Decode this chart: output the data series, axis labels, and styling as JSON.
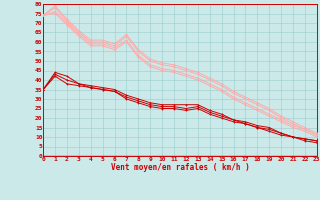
{
  "xlabel": "Vent moyen/en rafales ( km/h )",
  "xlim": [
    0,
    23
  ],
  "ylim": [
    0,
    80
  ],
  "yticks": [
    0,
    5,
    10,
    15,
    20,
    25,
    30,
    35,
    40,
    45,
    50,
    55,
    60,
    65,
    70,
    75,
    80
  ],
  "xticks": [
    0,
    1,
    2,
    3,
    4,
    5,
    6,
    7,
    8,
    9,
    10,
    11,
    12,
    13,
    14,
    15,
    16,
    17,
    18,
    19,
    20,
    21,
    22,
    23
  ],
  "background_color": "#cce9e9",
  "grid_color": "#99cccc",
  "line_color_dark": "#cc0000",
  "line_color_light": "#ffaaaa",
  "series_dark": [
    [
      0,
      35
    ],
    [
      1,
      44
    ],
    [
      2,
      42
    ],
    [
      3,
      38
    ],
    [
      4,
      37
    ],
    [
      5,
      36
    ],
    [
      6,
      35
    ],
    [
      7,
      32
    ],
    [
      8,
      30
    ],
    [
      9,
      28
    ],
    [
      10,
      27
    ],
    [
      11,
      27
    ],
    [
      12,
      27
    ],
    [
      13,
      27
    ],
    [
      14,
      24
    ],
    [
      15,
      22
    ],
    [
      16,
      19
    ],
    [
      17,
      18
    ],
    [
      18,
      16
    ],
    [
      19,
      15
    ],
    [
      20,
      12
    ],
    [
      21,
      10
    ],
    [
      22,
      9
    ],
    [
      23,
      8
    ]
  ],
  "series_dark2": [
    [
      0,
      35
    ],
    [
      1,
      42
    ],
    [
      2,
      38
    ],
    [
      3,
      37
    ],
    [
      4,
      36
    ],
    [
      5,
      35
    ],
    [
      6,
      34
    ],
    [
      7,
      30
    ],
    [
      8,
      28
    ],
    [
      9,
      26
    ],
    [
      10,
      25
    ],
    [
      11,
      25
    ],
    [
      12,
      24
    ],
    [
      13,
      25
    ],
    [
      14,
      22
    ],
    [
      15,
      20
    ],
    [
      16,
      18
    ],
    [
      17,
      17
    ],
    [
      18,
      15
    ],
    [
      19,
      13
    ],
    [
      20,
      11
    ],
    [
      21,
      10
    ],
    [
      22,
      8
    ],
    [
      23,
      7
    ]
  ],
  "series_dark3": [
    [
      0,
      35
    ],
    [
      1,
      43
    ],
    [
      2,
      40
    ],
    [
      3,
      38
    ],
    [
      4,
      36
    ],
    [
      5,
      35
    ],
    [
      6,
      34
    ],
    [
      7,
      31
    ],
    [
      8,
      29
    ],
    [
      9,
      27
    ],
    [
      10,
      26
    ],
    [
      11,
      26
    ],
    [
      12,
      25
    ],
    [
      13,
      26
    ],
    [
      14,
      23
    ],
    [
      15,
      21
    ],
    [
      16,
      19
    ],
    [
      17,
      17
    ],
    [
      18,
      15
    ],
    [
      19,
      14
    ],
    [
      20,
      12
    ],
    [
      21,
      10
    ],
    [
      22,
      9
    ],
    [
      23,
      8
    ]
  ],
  "series_light1": [
    [
      0,
      74
    ],
    [
      1,
      78
    ],
    [
      2,
      71
    ],
    [
      3,
      65
    ],
    [
      4,
      60
    ],
    [
      5,
      60
    ],
    [
      6,
      58
    ],
    [
      7,
      63
    ],
    [
      8,
      55
    ],
    [
      9,
      50
    ],
    [
      10,
      48
    ],
    [
      11,
      47
    ],
    [
      12,
      45
    ],
    [
      13,
      43
    ],
    [
      14,
      40
    ],
    [
      15,
      37
    ],
    [
      16,
      33
    ],
    [
      17,
      30
    ],
    [
      18,
      27
    ],
    [
      19,
      24
    ],
    [
      20,
      20
    ],
    [
      21,
      17
    ],
    [
      22,
      14
    ],
    [
      23,
      11
    ]
  ],
  "series_light2": [
    [
      0,
      74
    ],
    [
      1,
      75
    ],
    [
      2,
      69
    ],
    [
      3,
      63
    ],
    [
      4,
      58
    ],
    [
      5,
      58
    ],
    [
      6,
      56
    ],
    [
      7,
      60
    ],
    [
      8,
      52
    ],
    [
      9,
      47
    ],
    [
      10,
      45
    ],
    [
      11,
      44
    ],
    [
      12,
      42
    ],
    [
      13,
      40
    ],
    [
      14,
      37
    ],
    [
      15,
      34
    ],
    [
      16,
      30
    ],
    [
      17,
      27
    ],
    [
      18,
      24
    ],
    [
      19,
      21
    ],
    [
      20,
      18
    ],
    [
      21,
      15
    ],
    [
      22,
      13
    ],
    [
      23,
      10
    ]
  ],
  "series_light3": [
    [
      0,
      74
    ],
    [
      1,
      76
    ],
    [
      2,
      70
    ],
    [
      3,
      64
    ],
    [
      4,
      59
    ],
    [
      5,
      59
    ],
    [
      6,
      57
    ],
    [
      7,
      61
    ],
    [
      8,
      53
    ],
    [
      9,
      48
    ],
    [
      10,
      46
    ],
    [
      11,
      45
    ],
    [
      12,
      43
    ],
    [
      13,
      41
    ],
    [
      14,
      38
    ],
    [
      15,
      35
    ],
    [
      16,
      31
    ],
    [
      17,
      28
    ],
    [
      18,
      25
    ],
    [
      19,
      22
    ],
    [
      20,
      19
    ],
    [
      21,
      16
    ],
    [
      22,
      14
    ],
    [
      23,
      11
    ]
  ],
  "series_light4": [
    [
      0,
      74
    ],
    [
      1,
      79
    ],
    [
      2,
      72
    ],
    [
      3,
      66
    ],
    [
      4,
      61
    ],
    [
      5,
      61
    ],
    [
      6,
      59
    ],
    [
      7,
      64
    ],
    [
      8,
      56
    ],
    [
      9,
      51
    ],
    [
      10,
      49
    ],
    [
      11,
      48
    ],
    [
      12,
      46
    ],
    [
      13,
      44
    ],
    [
      14,
      41
    ],
    [
      15,
      38
    ],
    [
      16,
      34
    ],
    [
      17,
      31
    ],
    [
      18,
      28
    ],
    [
      19,
      25
    ],
    [
      20,
      21
    ],
    [
      21,
      18
    ],
    [
      22,
      15
    ],
    [
      23,
      12
    ]
  ]
}
